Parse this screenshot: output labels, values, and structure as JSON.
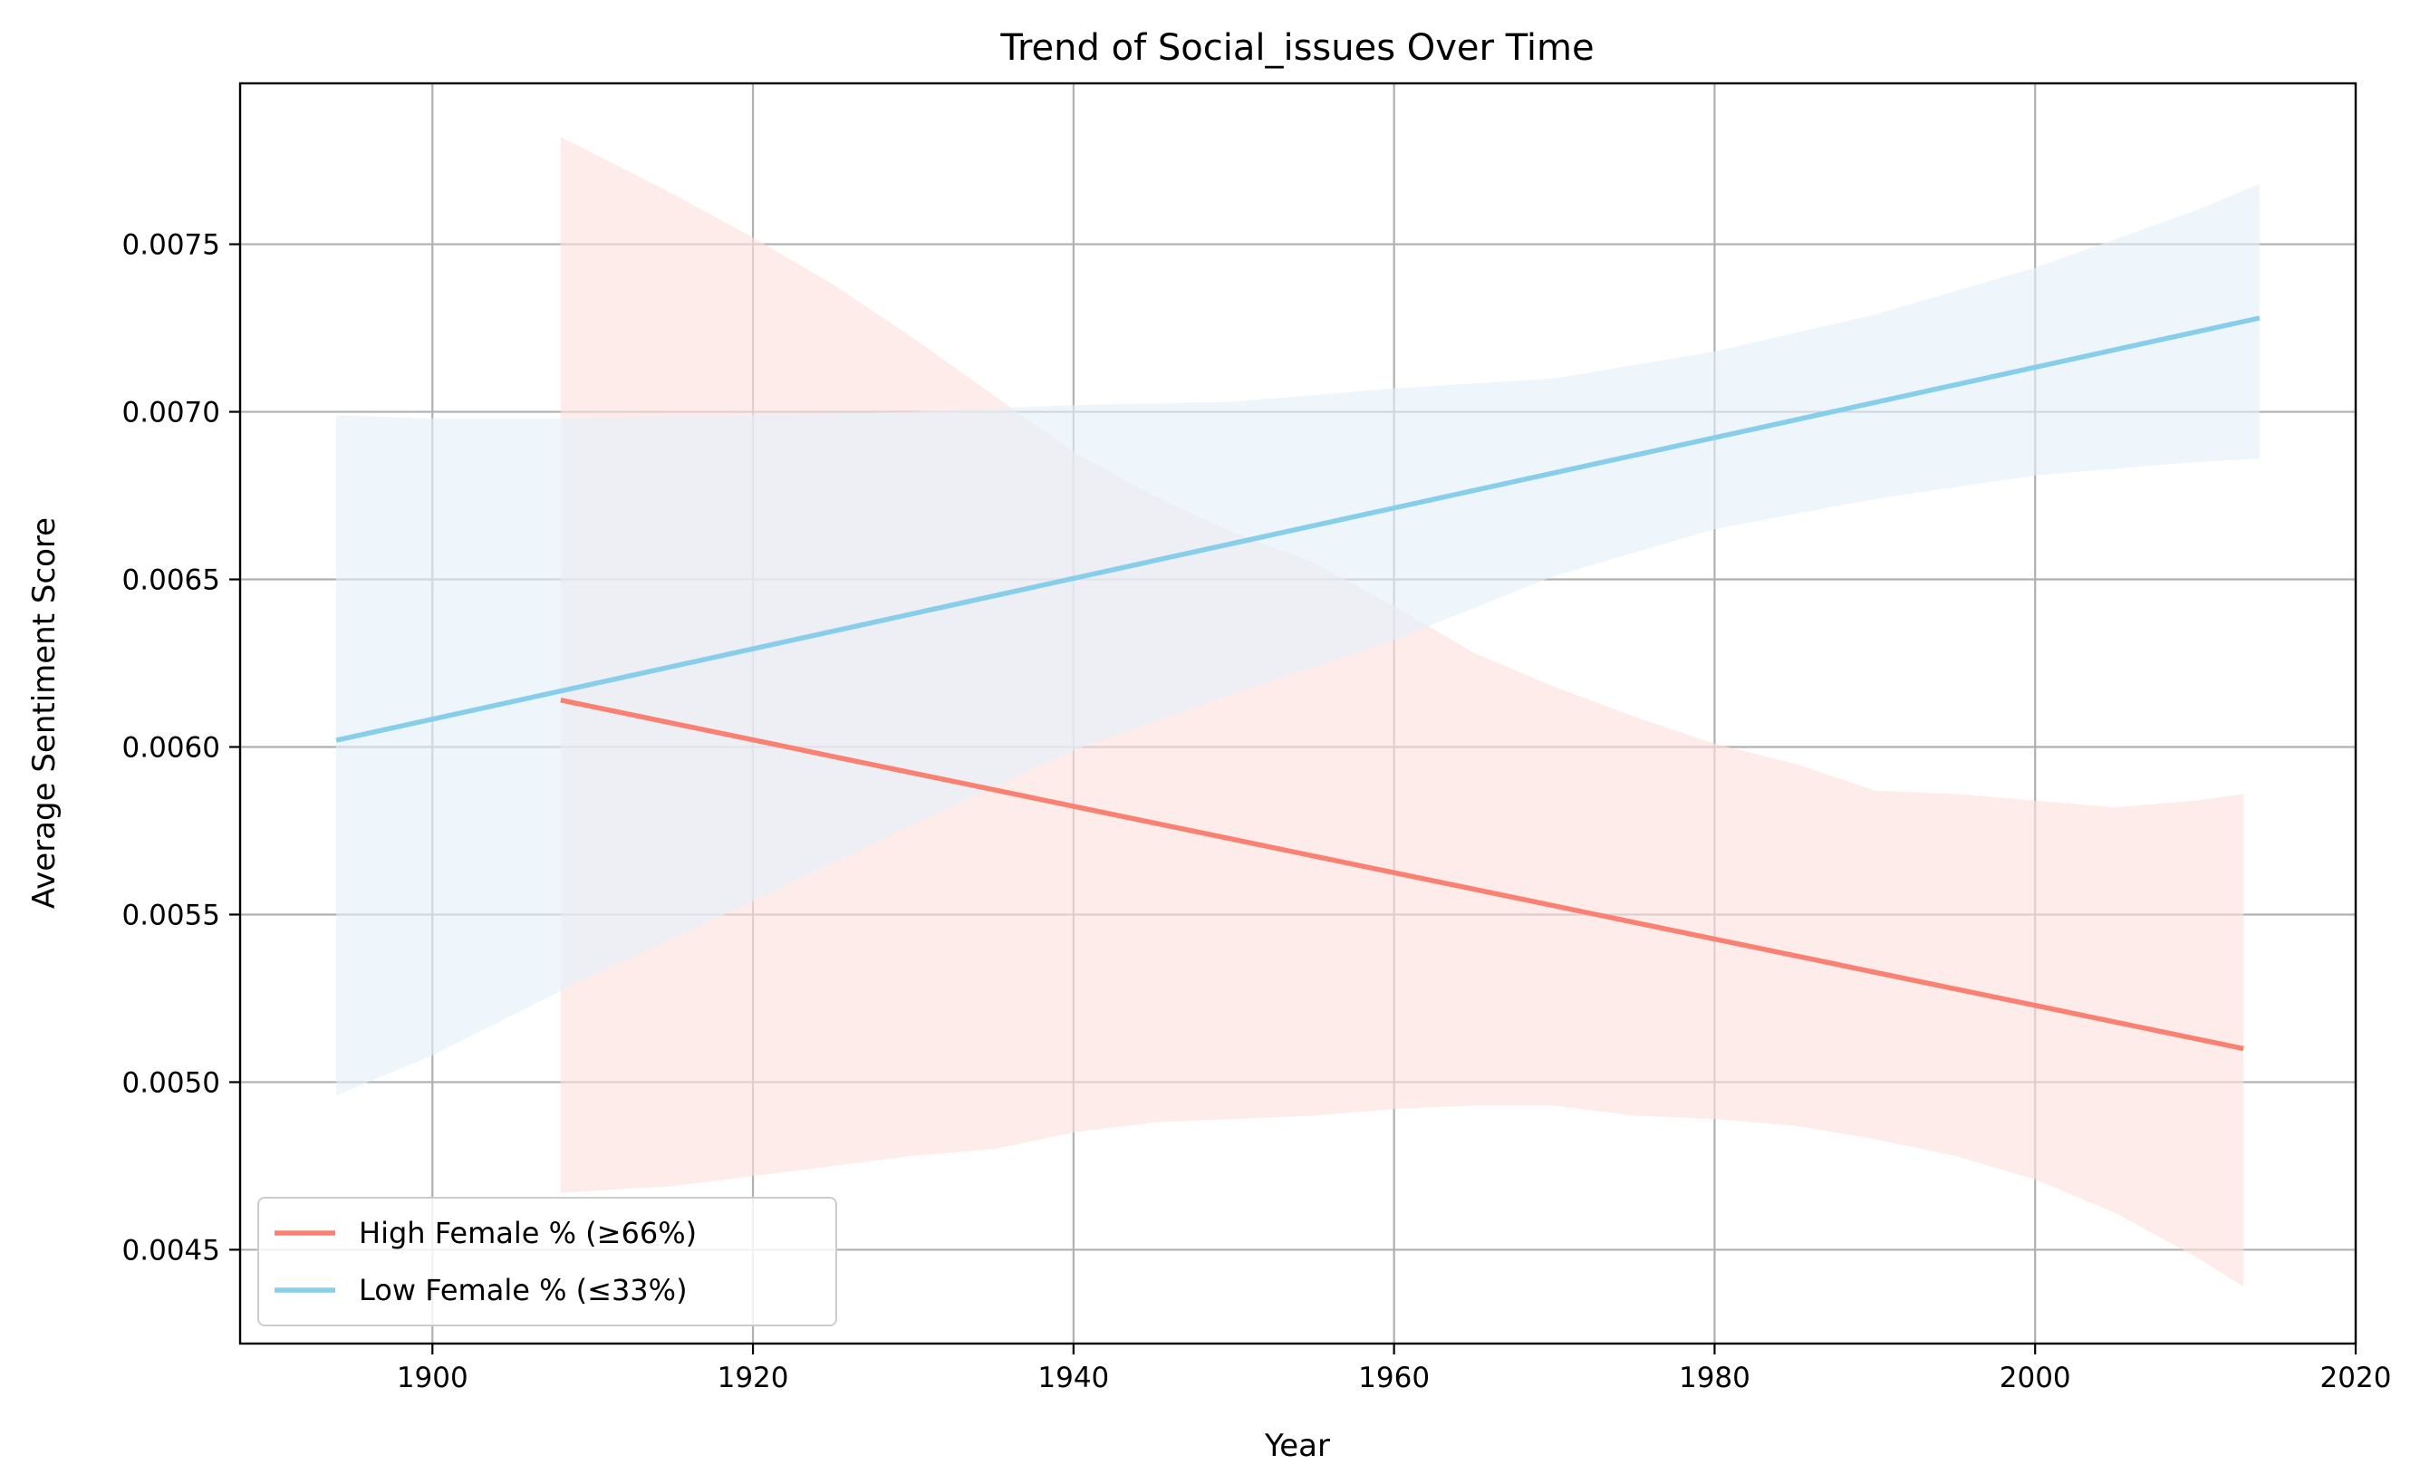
{
  "chart_data": {
    "type": "line",
    "title": "Trend of Social_issues Over Time",
    "xlabel": "Year",
    "ylabel": "Average Sentiment Score",
    "xlim": [
      1888,
      2020
    ],
    "ylim": [
      0.00422,
      0.00798
    ],
    "xticks": [
      1900,
      1920,
      1940,
      1960,
      1980,
      2000,
      2020
    ],
    "xtick_labels": [
      "1900",
      "1920",
      "1940",
      "1960",
      "1980",
      "2000",
      "2020"
    ],
    "yticks": [
      0.0045,
      0.005,
      0.0055,
      0.006,
      0.0065,
      0.007,
      0.0075
    ],
    "ytick_labels": [
      "0.0045",
      "0.0050",
      "0.0055",
      "0.0060",
      "0.0065",
      "0.0070",
      "0.0075"
    ],
    "grid": true,
    "legend_position": "lower-left",
    "series": [
      {
        "name": "High Female % (≥66%)",
        "color": "#fa8072",
        "band_color": "#fde0dd",
        "x": [
          1908,
          2013
        ],
        "y": [
          0.00614,
          0.0051
        ],
        "band": {
          "x": [
            1908,
            1915,
            1920,
            1925,
            1930,
            1935,
            1940,
            1945,
            1950,
            1955,
            1960,
            1965,
            1970,
            1975,
            1980,
            1985,
            1990,
            1995,
            2000,
            2005,
            2010,
            2013
          ],
          "upper": [
            0.00782,
            0.00765,
            0.00752,
            0.00738,
            0.00722,
            0.00705,
            0.00688,
            0.00675,
            0.00664,
            0.00655,
            0.00642,
            0.00628,
            0.00618,
            0.00609,
            0.00601,
            0.00595,
            0.00587,
            0.00586,
            0.00584,
            0.00582,
            0.00584,
            0.00586
          ],
          "lower": [
            0.00467,
            0.00469,
            0.00472,
            0.00475,
            0.00478,
            0.0048,
            0.00485,
            0.00488,
            0.00489,
            0.0049,
            0.00492,
            0.00493,
            0.00493,
            0.0049,
            0.00489,
            0.00487,
            0.00483,
            0.00478,
            0.00471,
            0.00461,
            0.00448,
            0.00439
          ]
        }
      },
      {
        "name": "Low Female % (≤33%)",
        "color": "#87ceeb",
        "band_color": "#e3f0fa",
        "x": [
          1894,
          2014
        ],
        "y": [
          0.00602,
          0.00728
        ],
        "band": {
          "x": [
            1894,
            1900,
            1910,
            1920,
            1930,
            1940,
            1950,
            1960,
            1970,
            1980,
            1990,
            2000,
            2010,
            2014
          ],
          "upper": [
            0.00699,
            0.00698,
            0.00698,
            0.00699,
            0.007,
            0.00702,
            0.00703,
            0.00707,
            0.0071,
            0.00718,
            0.00729,
            0.00743,
            0.0076,
            0.00768
          ],
          "lower": [
            0.00496,
            0.00508,
            0.00532,
            0.00554,
            0.00577,
            0.00599,
            0.00616,
            0.00632,
            0.00651,
            0.00665,
            0.00674,
            0.00681,
            0.00685,
            0.00686
          ]
        }
      }
    ]
  }
}
